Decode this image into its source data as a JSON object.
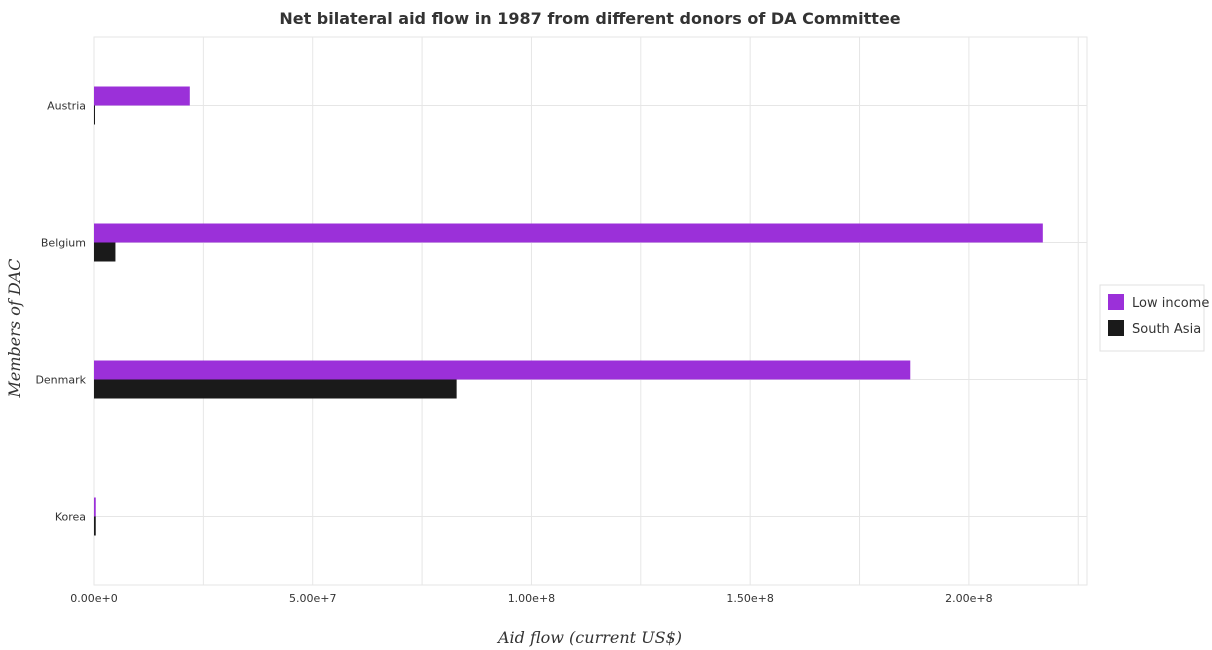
{
  "chart_data": {
    "type": "bar",
    "orientation": "horizontal",
    "title": "Net bilateral aid flow in 1987 from different donors of DA Committee",
    "xlabel": "Aid flow (current US$)",
    "ylabel": "Members of DAC",
    "categories": [
      "Austria",
      "Belgium",
      "Denmark",
      "Korea"
    ],
    "series": [
      {
        "name": "Low income",
        "color": "#9b30d9",
        "values": [
          21900000,
          216900000,
          186600000,
          400000
        ]
      },
      {
        "name": "South Asia",
        "color": "#1a1a1a",
        "values": [
          100000,
          4900000,
          82900000,
          400000
        ]
      }
    ],
    "xlim": [
      0,
      227000000
    ],
    "xticks": [
      {
        "value": 0,
        "label": "0.00e+0"
      },
      {
        "value": 50000000,
        "label": "5.00e+7"
      },
      {
        "value": 100000000,
        "label": "1.00e+8"
      },
      {
        "value": 150000000,
        "label": "1.50e+8"
      },
      {
        "value": 200000000,
        "label": "2.00e+8"
      }
    ],
    "grid": true,
    "legend": {
      "position": "right"
    }
  }
}
